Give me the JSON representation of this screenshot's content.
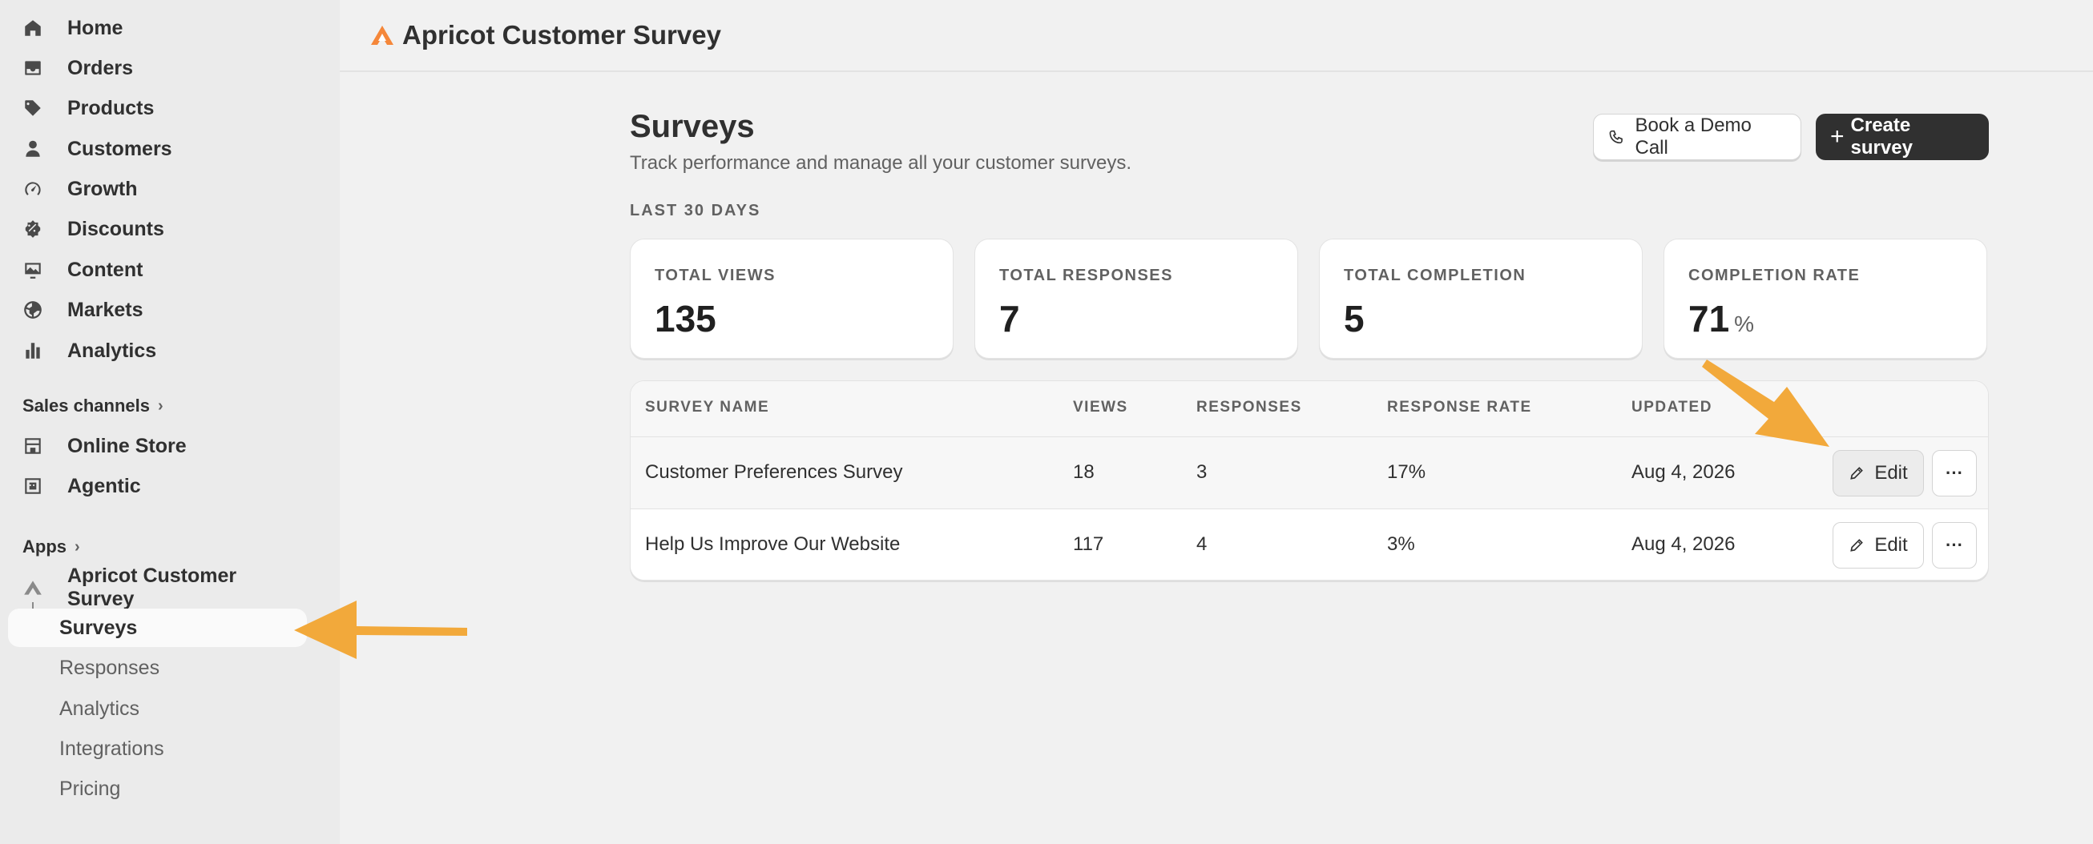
{
  "sidebar": {
    "nav": [
      {
        "label": "Home",
        "icon": "home-icon"
      },
      {
        "label": "Orders",
        "icon": "inbox-icon"
      },
      {
        "label": "Products",
        "icon": "tag-icon"
      },
      {
        "label": "Customers",
        "icon": "person-icon"
      },
      {
        "label": "Growth",
        "icon": "gauge-icon"
      },
      {
        "label": "Discounts",
        "icon": "discount-icon"
      },
      {
        "label": "Content",
        "icon": "image-icon"
      },
      {
        "label": "Markets",
        "icon": "globe-icon"
      },
      {
        "label": "Analytics",
        "icon": "bar-chart-icon"
      }
    ],
    "sales_channels_label": "Sales channels",
    "channels": [
      {
        "label": "Online Store",
        "icon": "store-icon"
      },
      {
        "label": "Agentic",
        "icon": "agentic-icon"
      }
    ],
    "apps_label": "Apps",
    "app_name": "Apricot Customer Survey",
    "sub_items": [
      {
        "label": "Surveys",
        "active": true
      },
      {
        "label": "Responses"
      },
      {
        "label": "Analytics"
      },
      {
        "label": "Integrations"
      },
      {
        "label": "Pricing"
      }
    ]
  },
  "header": {
    "app_title": "Apricot Customer Survey",
    "brand_color": "#f5873a"
  },
  "main": {
    "title": "Surveys",
    "subtitle": "Track performance and manage all your customer surveys.",
    "demo_button": "Book a Demo Call",
    "create_button": "Create survey",
    "period_label": "LAST 30 DAYS",
    "stats": [
      {
        "label": "TOTAL VIEWS",
        "value": "135"
      },
      {
        "label": "TOTAL RESPONSES",
        "value": "7"
      },
      {
        "label": "TOTAL COMPLETION",
        "value": "5"
      },
      {
        "label": "COMPLETION RATE",
        "value": "71",
        "unit": "%"
      }
    ],
    "table": {
      "columns": [
        "SURVEY NAME",
        "VIEWS",
        "RESPONSES",
        "RESPONSE RATE",
        "UPDATED"
      ],
      "rows": [
        {
          "name": "Customer Preferences Survey",
          "views": "18",
          "responses": "3",
          "rate": "17%",
          "updated": "Aug 4, 2026",
          "edit": "Edit",
          "more": "···"
        },
        {
          "name": "Help Us Improve Our Website",
          "views": "117",
          "responses": "4",
          "rate": "3%",
          "updated": "Aug 4, 2026",
          "edit": "Edit",
          "more": "···"
        }
      ]
    }
  },
  "annotation_color": "#f2a93b"
}
